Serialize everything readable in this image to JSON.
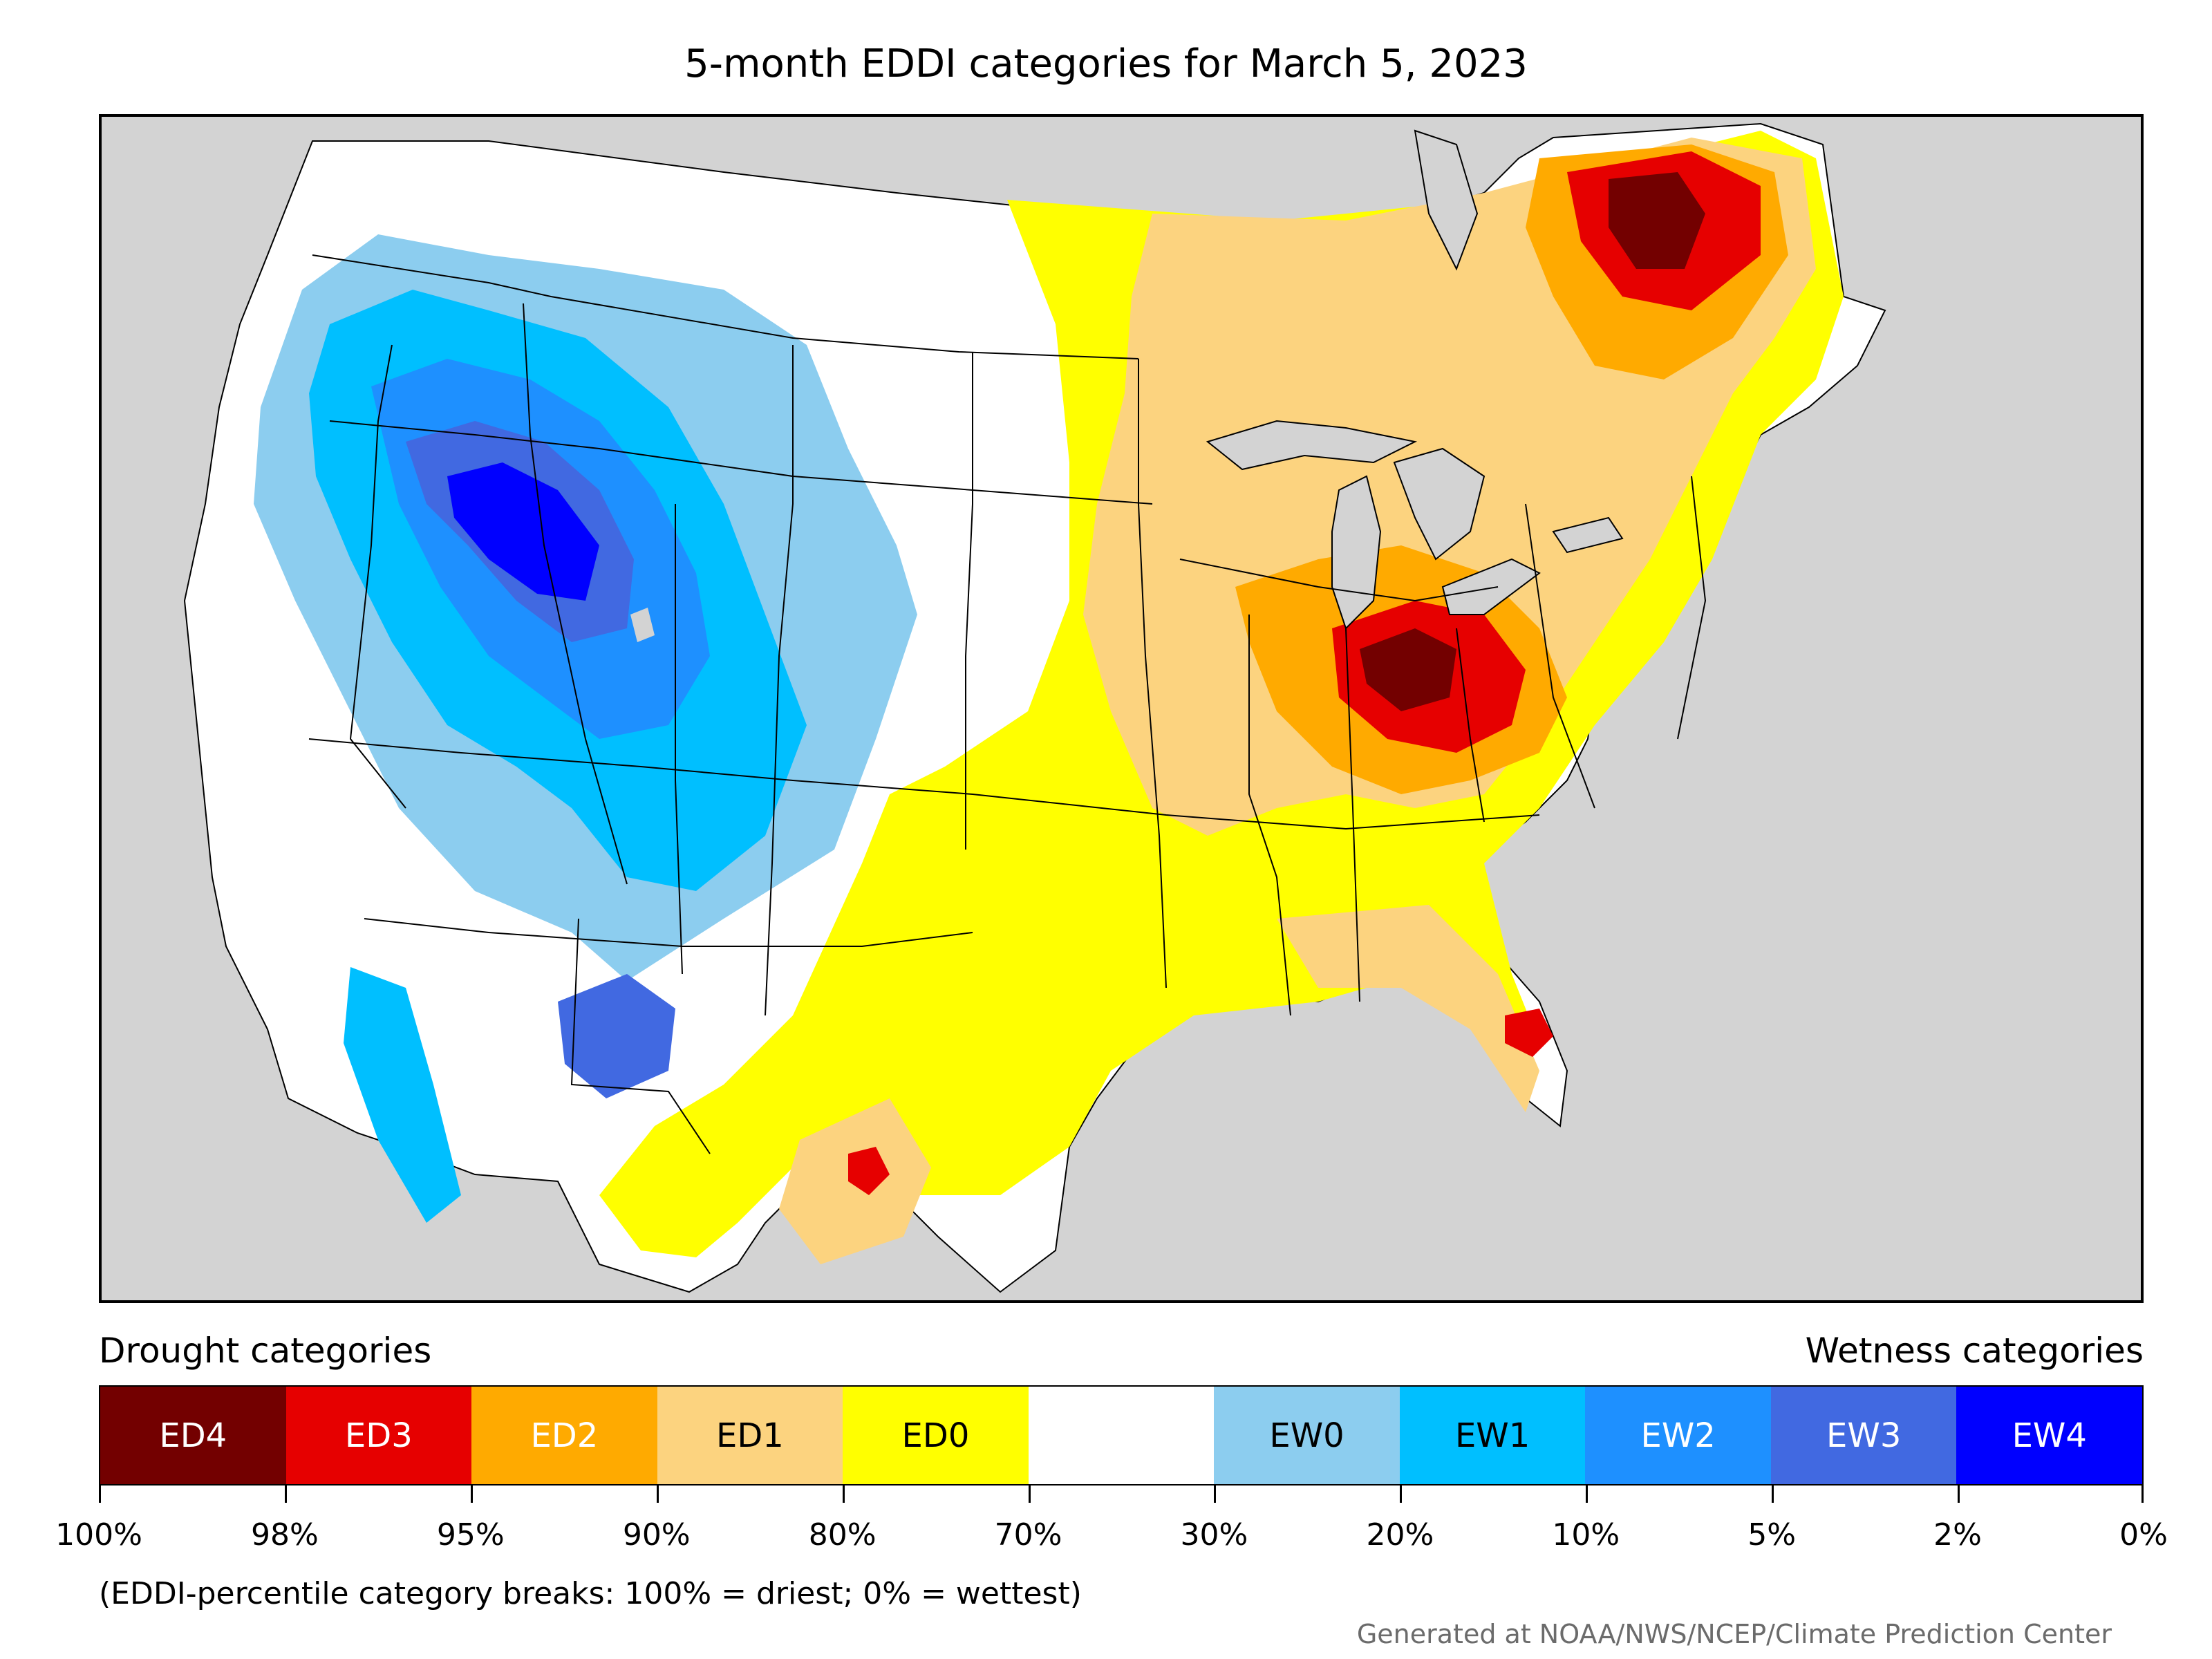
{
  "title": "5-month EDDI categories for March 5, 2023",
  "legend": {
    "drought_heading": "Drought categories",
    "wetness_heading": "Wetness categories",
    "categories": [
      {
        "label": "ED4",
        "color": "#730000",
        "text_color": "#ffffff"
      },
      {
        "label": "ED3",
        "color": "#e60000",
        "text_color": "#ffffff"
      },
      {
        "label": "ED2",
        "color": "#ffaa00",
        "text_color": "#ffffff"
      },
      {
        "label": "ED1",
        "color": "#fcd37f",
        "text_color": "#000000"
      },
      {
        "label": "ED0",
        "color": "#ffff00",
        "text_color": "#000000"
      },
      {
        "label": "",
        "color": "#ffffff",
        "text_color": "#000000"
      },
      {
        "label": "EW0",
        "color": "#8ccdef",
        "text_color": "#000000"
      },
      {
        "label": "EW1",
        "color": "#00bfff",
        "text_color": "#000000"
      },
      {
        "label": "EW2",
        "color": "#1e90ff",
        "text_color": "#ffffff"
      },
      {
        "label": "EW3",
        "color": "#4169e1",
        "text_color": "#ffffff"
      },
      {
        "label": "EW4",
        "color": "#0000ff",
        "text_color": "#ffffff"
      }
    ],
    "tick_labels": [
      "100%",
      "98%",
      "95%",
      "90%",
      "80%",
      "70%",
      "30%",
      "20%",
      "10%",
      "5%",
      "2%",
      "0%"
    ]
  },
  "note": "(EDDI-percentile category breaks: 100% = driest; 0% = wettest)",
  "credit": "Generated at NOAA/NWS/NCEP/Climate Prediction Center",
  "colors": {
    "background_land_outside": "#d3d3d3",
    "lakes": "#d3d3d3"
  }
}
